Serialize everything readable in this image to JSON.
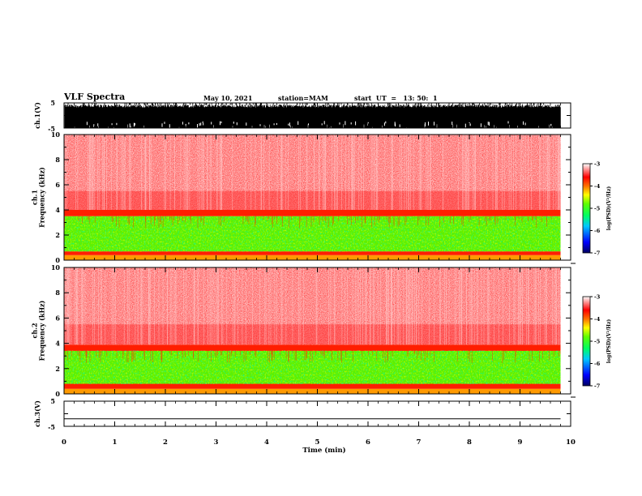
{
  "header": {
    "title": "VLF Spectra",
    "date": "May 10, 2021",
    "station": "station=MAM",
    "start_ut": "start  UT  =   13: 50:  1"
  },
  "colors": {
    "spectrum_high": "#ff0000",
    "spectrum_mid": "#00ff00",
    "spectrum_low": "#0000ff",
    "trace": "#000000"
  },
  "chart_data": [
    {
      "type": "line",
      "name": "ch1-waveform",
      "ylabel": "ch.1(V)",
      "yticks": [
        "5",
        "-5"
      ],
      "ylim": [
        -5,
        5
      ],
      "xlim": [
        0,
        10
      ],
      "description_values": "dense waveform saturating between about -5 and +4.5 V over 0 to 9.8 min"
    },
    {
      "type": "heatmap",
      "name": "ch1-spectrogram",
      "ylabel": "ch.1\nFrequency (kHz)",
      "xlim": [
        0,
        10
      ],
      "ylim": [
        0,
        10
      ],
      "yticks": [
        "0",
        "2",
        "4",
        "6",
        "8",
        "10"
      ],
      "data_end_min": 9.8,
      "bands_khz": [
        {
          "from": 0,
          "to": 0.4,
          "level": "mid-high"
        },
        {
          "from": 0.4,
          "to": 0.7,
          "level": "high"
        },
        {
          "from": 0.7,
          "to": 3.5,
          "level": "mid"
        },
        {
          "from": 3.5,
          "to": 4.0,
          "level": "high"
        },
        {
          "from": 4.0,
          "to": 10,
          "level": "very-high"
        }
      ],
      "colorbar": {
        "label": "log(PSD)(V²/Hz)",
        "ticks": [
          "-3",
          "-4",
          "-5",
          "-6",
          "-7"
        ],
        "range": [
          -7,
          -3
        ]
      }
    },
    {
      "type": "heatmap",
      "name": "ch2-spectrogram",
      "ylabel": "ch.2\nFrequency (kHz)",
      "xlim": [
        0,
        10
      ],
      "ylim": [
        0,
        10
      ],
      "yticks": [
        "0",
        "2",
        "4",
        "6",
        "8",
        "10"
      ],
      "data_end_min": 9.8,
      "bands_khz": [
        {
          "from": 0,
          "to": 0.4,
          "level": "mid-high"
        },
        {
          "from": 0.4,
          "to": 0.8,
          "level": "high"
        },
        {
          "from": 0.8,
          "to": 3.4,
          "level": "mid"
        },
        {
          "from": 3.4,
          "to": 3.9,
          "level": "high"
        },
        {
          "from": 3.9,
          "to": 10,
          "level": "very-high"
        }
      ],
      "colorbar": {
        "label": "log(PSD)(V²/Hz)",
        "ticks": [
          "-3",
          "-4",
          "-5",
          "-6",
          "-7"
        ],
        "range": [
          -7,
          -3
        ]
      }
    },
    {
      "type": "line",
      "name": "ch3-waveform",
      "ylabel": "ch.3(V)",
      "yticks": [
        "5",
        "-5"
      ],
      "ylim": [
        -5,
        5
      ],
      "xlim": [
        0,
        10
      ],
      "values": [
        {
          "x": 0,
          "y": -2
        },
        {
          "x": 9.8,
          "y": -2
        }
      ]
    }
  ],
  "xaxis": {
    "label": "Time (min)",
    "ticks": [
      "0",
      "1",
      "2",
      "3",
      "4",
      "5",
      "6",
      "7",
      "8",
      "9",
      "10"
    ]
  }
}
